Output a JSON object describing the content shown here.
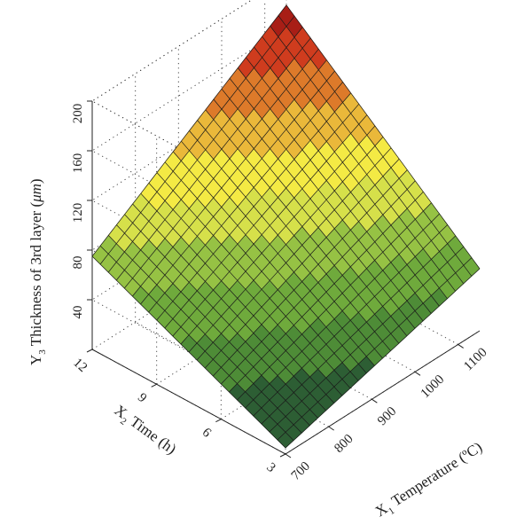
{
  "chart_data": {
    "type": "surface",
    "title": "",
    "xlabel": "X₁ Temperature (ºC)",
    "ylabel": "X₂ Time (h)",
    "zlabel": "Y₃ Thickness of 3rd layer (μm)",
    "xlabel_parts": {
      "var": "X",
      "sub": "1",
      "text": " Temperature (ºC)"
    },
    "ylabel_parts": {
      "var": "X",
      "sub": "2",
      "text": " Time (h)"
    },
    "zlabel_parts": {
      "var": "Y",
      "sub": "3",
      "text": " Thickness of 3rd layer (",
      "mu": "μm",
      "close": ")"
    },
    "x_ticks": [
      "700",
      "800",
      "900",
      "1000",
      "1100"
    ],
    "y_ticks": [
      "3",
      "6",
      "9",
      "12"
    ],
    "z_ticks": [
      "40",
      "80",
      "120",
      "160",
      "200"
    ],
    "xlim": [
      700,
      1150
    ],
    "ylim": [
      3,
      12
    ],
    "zlim": [
      0,
      200
    ],
    "grid": true,
    "colormap": [
      "#2d5e34",
      "#4e8c37",
      "#6faa3c",
      "#96c244",
      "#d6e04a",
      "#f4ea44",
      "#eab83a",
      "#dd7a2a",
      "#cf3c1e",
      "#a81e16"
    ],
    "corners": [
      {
        "x": 700,
        "y": 3,
        "z": 5
      },
      {
        "x": 1150,
        "y": 3,
        "z": 50
      },
      {
        "x": 700,
        "y": 12,
        "z": 75
      },
      {
        "x": 1150,
        "y": 12,
        "z": 178
      }
    ],
    "grid_n": 24
  }
}
